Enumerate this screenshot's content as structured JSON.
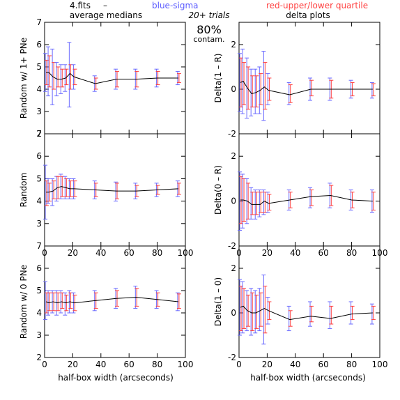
{
  "header": {
    "file_label": "4.fits",
    "dash": "–",
    "blue_label": "blue-sigma",
    "red_label": "red-upper/lower quartile",
    "trials_label": "20+ trials",
    "contam_pct": "80%",
    "contam_label": "contam."
  },
  "column_titles": [
    "average medians",
    "delta plots"
  ],
  "x_axis_label": "half-box width (arcseconds)",
  "colors": {
    "line": "#000000",
    "sigma": "#6a6aff",
    "quartile": "#ff3c3c",
    "axis": "#000000"
  },
  "chart_data": [
    {
      "type": "line",
      "row": 0,
      "col": 0,
      "ylabel": "Random w/ 1+ PNe",
      "xlim": [
        0,
        100
      ],
      "ylim": [
        2,
        7
      ],
      "xticks": [
        0,
        20,
        40,
        60,
        80,
        100
      ],
      "yticks": [
        2,
        3,
        4,
        5,
        6,
        7
      ],
      "show_xticklabels": false,
      "x": [
        1,
        3,
        6,
        9,
        12,
        15,
        18,
        21,
        36,
        51,
        65,
        80,
        95
      ],
      "y": [
        4.75,
        4.75,
        4.55,
        4.45,
        4.45,
        4.5,
        4.7,
        4.55,
        4.25,
        4.45,
        4.45,
        4.5,
        4.5
      ],
      "sigma_lo": [
        3.9,
        3.7,
        3.3,
        3.7,
        3.8,
        3.9,
        3.2,
        4.0,
        3.9,
        4.0,
        4.0,
        4.1,
        4.2
      ],
      "sigma_hi": [
        5.6,
        5.9,
        5.8,
        5.2,
        5.1,
        5.1,
        6.1,
        5.1,
        4.6,
        4.9,
        4.9,
        4.9,
        4.8
      ],
      "q_lo": [
        4.2,
        4.1,
        4.0,
        4.1,
        4.1,
        4.2,
        4.0,
        4.2,
        4.0,
        4.1,
        4.1,
        4.2,
        4.3
      ],
      "q_hi": [
        5.3,
        5.5,
        5.2,
        5.0,
        4.9,
        4.9,
        5.1,
        4.9,
        4.5,
        4.8,
        4.8,
        4.8,
        4.7
      ]
    },
    {
      "type": "line",
      "row": 0,
      "col": 1,
      "ylabel": "Delta(1 – R)",
      "xlim": [
        0,
        100
      ],
      "ylim": [
        -2,
        3
      ],
      "xticks": [
        0,
        20,
        40,
        60,
        80,
        100
      ],
      "yticks": [
        -2,
        0,
        2
      ],
      "show_xticklabels": false,
      "x": [
        1,
        3,
        6,
        9,
        12,
        15,
        18,
        21,
        36,
        51,
        65,
        80,
        95
      ],
      "y": [
        0.3,
        0.35,
        0.05,
        -0.2,
        -0.15,
        -0.05,
        0.1,
        -0.05,
        -0.25,
        0.0,
        0.0,
        0.0,
        0.0
      ],
      "sigma_lo": [
        -1.0,
        -1.1,
        -1.3,
        -1.2,
        -1.1,
        -1.1,
        -1.4,
        -0.7,
        -0.7,
        -0.5,
        -0.5,
        -0.4,
        -0.4
      ],
      "sigma_hi": [
        1.6,
        1.8,
        1.4,
        0.9,
        0.9,
        1.0,
        1.7,
        0.7,
        0.3,
        0.5,
        0.5,
        0.4,
        0.3
      ],
      "q_lo": [
        -0.8,
        -0.7,
        -0.9,
        -0.8,
        -0.8,
        -0.7,
        -0.9,
        -0.5,
        -0.6,
        -0.3,
        -0.4,
        -0.3,
        -0.3
      ],
      "q_hi": [
        1.4,
        1.2,
        1.0,
        0.6,
        0.6,
        0.7,
        1.2,
        0.5,
        0.2,
        0.4,
        0.4,
        0.3,
        0.25
      ]
    },
    {
      "type": "line",
      "row": 1,
      "col": 0,
      "ylabel": "Random",
      "xlim": [
        0,
        100
      ],
      "ylim": [
        2,
        7
      ],
      "xticks": [
        0,
        20,
        40,
        60,
        80,
        100
      ],
      "yticks": [
        3,
        4,
        5,
        6,
        7
      ],
      "show_xticklabels": true,
      "xticklabels": [
        "0",
        "20",
        "40",
        "60",
        "80",
        "100"
      ],
      "x": [
        1,
        3,
        6,
        9,
        12,
        15,
        18,
        21,
        36,
        51,
        65,
        80,
        95
      ],
      "y": [
        4.4,
        4.4,
        4.45,
        4.6,
        4.65,
        4.6,
        4.55,
        4.55,
        4.5,
        4.45,
        4.45,
        4.5,
        4.55
      ],
      "sigma_lo": [
        3.2,
        3.9,
        3.8,
        4.0,
        4.1,
        4.1,
        4.1,
        4.1,
        4.1,
        4.0,
        4.1,
        4.2,
        4.2
      ],
      "sigma_hi": [
        5.6,
        5.0,
        5.0,
        5.1,
        5.2,
        5.1,
        5.0,
        5.0,
        4.9,
        4.85,
        4.8,
        4.8,
        4.9
      ],
      "q_lo": [
        3.8,
        4.0,
        4.1,
        4.1,
        4.2,
        4.2,
        4.2,
        4.2,
        4.2,
        4.1,
        4.2,
        4.3,
        4.3
      ],
      "q_hi": [
        4.9,
        4.8,
        4.9,
        5.1,
        5.1,
        5.0,
        4.9,
        4.9,
        4.8,
        4.8,
        4.7,
        4.7,
        4.8
      ]
    },
    {
      "type": "line",
      "row": 1,
      "col": 1,
      "ylabel": "Delta(0 – R)",
      "xlim": [
        0,
        100
      ],
      "ylim": [
        -2,
        3
      ],
      "xticks": [
        0,
        20,
        40,
        60,
        80,
        100
      ],
      "yticks": [
        -2,
        0,
        2
      ],
      "show_xticklabels": true,
      "xticklabels": [
        "0",
        "20",
        "40",
        "60",
        "80",
        "100"
      ],
      "x": [
        1,
        3,
        6,
        9,
        12,
        15,
        18,
        21,
        36,
        51,
        65,
        80,
        95
      ],
      "y": [
        0.05,
        0.05,
        0.0,
        -0.15,
        -0.15,
        -0.15,
        0.0,
        -0.1,
        0.05,
        0.2,
        0.25,
        0.05,
        0.0
      ],
      "sigma_lo": [
        -1.3,
        -1.2,
        -1.0,
        -0.8,
        -0.8,
        -0.7,
        -0.6,
        -0.5,
        -0.4,
        -0.3,
        -0.3,
        -0.4,
        -0.5
      ],
      "sigma_hi": [
        1.3,
        1.2,
        1.0,
        0.6,
        0.5,
        0.5,
        0.5,
        0.4,
        0.5,
        0.6,
        0.8,
        0.5,
        0.5
      ],
      "q_lo": [
        -1.0,
        -0.9,
        -0.8,
        -0.6,
        -0.6,
        -0.5,
        -0.5,
        -0.4,
        -0.3,
        -0.2,
        -0.2,
        -0.3,
        -0.4
      ],
      "q_hi": [
        1.1,
        1.0,
        0.8,
        0.4,
        0.4,
        0.4,
        0.4,
        0.3,
        0.4,
        0.5,
        0.7,
        0.4,
        0.4
      ]
    },
    {
      "type": "line",
      "row": 2,
      "col": 0,
      "ylabel": "Random w/ 0 PNe",
      "xlim": [
        0,
        100
      ],
      "ylim": [
        2,
        7
      ],
      "xticks": [
        0,
        20,
        40,
        60,
        80,
        100
      ],
      "yticks": [
        2,
        3,
        4,
        5,
        6,
        7
      ],
      "show_xticklabels": true,
      "xticklabels": [
        "0",
        "20",
        "40",
        "60",
        "80",
        "100"
      ],
      "x": [
        1,
        3,
        6,
        9,
        12,
        15,
        18,
        21,
        36,
        51,
        65,
        80,
        95
      ],
      "y": [
        4.5,
        4.45,
        4.5,
        4.45,
        4.5,
        4.45,
        4.5,
        4.45,
        4.55,
        4.65,
        4.7,
        4.6,
        4.5
      ],
      "sigma_lo": [
        3.7,
        3.9,
        4.0,
        3.9,
        4.0,
        3.9,
        4.0,
        4.0,
        4.1,
        4.2,
        4.2,
        4.2,
        4.1
      ],
      "sigma_hi": [
        5.4,
        5.0,
        5.0,
        5.0,
        5.0,
        4.9,
        5.0,
        4.9,
        5.0,
        5.1,
        5.2,
        5.0,
        4.9
      ],
      "q_lo": [
        4.0,
        4.1,
        4.1,
        4.1,
        4.2,
        4.1,
        4.2,
        4.1,
        4.2,
        4.3,
        4.3,
        4.3,
        4.2
      ],
      "q_hi": [
        4.9,
        4.9,
        4.9,
        4.9,
        4.9,
        4.8,
        4.9,
        4.8,
        4.9,
        5.0,
        5.1,
        4.9,
        4.85
      ]
    },
    {
      "type": "line",
      "row": 2,
      "col": 1,
      "ylabel": "Delta(1 – 0)",
      "xlim": [
        0,
        100
      ],
      "ylim": [
        -2,
        3
      ],
      "xticks": [
        0,
        20,
        40,
        60,
        80,
        100
      ],
      "yticks": [
        -2,
        0,
        2
      ],
      "show_xticklabels": true,
      "xticklabels": [
        "0",
        "20",
        "40",
        "60",
        "80",
        "100"
      ],
      "x": [
        1,
        3,
        6,
        9,
        12,
        15,
        18,
        21,
        36,
        51,
        65,
        80,
        95
      ],
      "y": [
        0.25,
        0.3,
        0.1,
        0.0,
        0.0,
        0.1,
        0.2,
        0.1,
        -0.3,
        -0.15,
        -0.25,
        -0.05,
        0.0
      ],
      "sigma_lo": [
        -1.0,
        -0.9,
        -0.8,
        -1.0,
        -0.9,
        -0.8,
        -1.4,
        -0.5,
        -0.8,
        -0.6,
        -0.7,
        -0.5,
        -0.5
      ],
      "sigma_hi": [
        1.5,
        1.4,
        1.0,
        1.1,
        1.0,
        1.1,
        1.7,
        0.7,
        0.3,
        0.5,
        0.5,
        0.5,
        0.4
      ],
      "q_lo": [
        -0.8,
        -0.7,
        -0.6,
        -0.8,
        -0.7,
        -0.6,
        -0.9,
        -0.3,
        -0.6,
        -0.4,
        -0.5,
        -0.3,
        -0.3
      ],
      "q_hi": [
        1.2,
        1.1,
        0.8,
        0.9,
        0.8,
        0.9,
        1.2,
        0.5,
        0.1,
        0.3,
        0.3,
        0.3,
        0.3
      ]
    }
  ]
}
